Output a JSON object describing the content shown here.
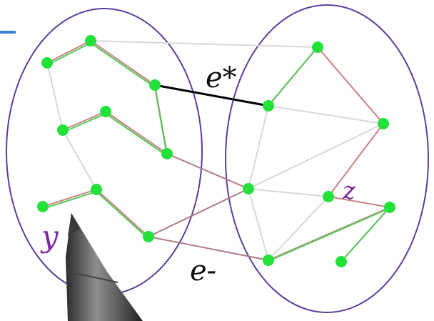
{
  "diagram": {
    "labels": {
      "e_star": "e*",
      "e_minus": "e-",
      "y": "y",
      "z": "z"
    },
    "colors": {
      "ellipse": "#5b3fa0",
      "node": "#22e23a",
      "gray_edge": "#d8d8d8",
      "tree_edge_red": "#c98282",
      "tree_edge_green": "#58c95a",
      "cross_edge_red": "#b07a82",
      "highlight_edge": "#000000",
      "label_black": "#111111",
      "label_purple": "#7a2aa0",
      "accent_blue": "#3a7fd8"
    },
    "pen_present": true
  }
}
